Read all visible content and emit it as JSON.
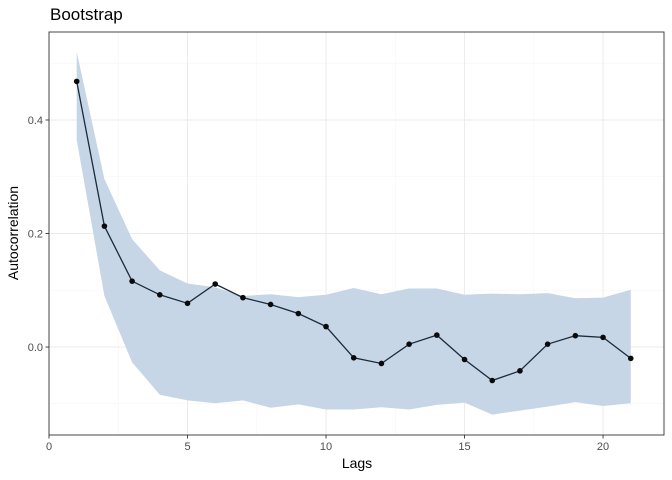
{
  "chart_data": {
    "type": "line",
    "title": "Bootstrap",
    "xlabel": "Lags",
    "ylabel": "Autocorrelation",
    "xlim": [
      0,
      22.2
    ],
    "ylim": [
      -0.155,
      0.555
    ],
    "x_ticks": [
      0,
      5,
      10,
      15,
      20
    ],
    "x_tick_labels": [
      "0",
      "5",
      "10",
      "15",
      "20"
    ],
    "y_ticks": [
      0.0,
      0.2,
      0.4
    ],
    "y_tick_labels": [
      "0.0",
      "0.2",
      "0.4"
    ],
    "grid": true,
    "series": [
      {
        "x": [
          1,
          2,
          3,
          4,
          5,
          6,
          7,
          8,
          9,
          10,
          11,
          12,
          13,
          14,
          15,
          16,
          17,
          18,
          19,
          20,
          21
        ],
        "values": [
          0.468,
          0.213,
          0.116,
          0.092,
          0.077,
          0.111,
          0.087,
          0.075,
          0.059,
          0.036,
          -0.019,
          -0.029,
          0.005,
          0.021,
          -0.022,
          -0.059,
          -0.042,
          0.005,
          0.02,
          0.017,
          -0.02
        ],
        "lower": [
          0.365,
          0.09,
          -0.027,
          -0.084,
          -0.094,
          -0.099,
          -0.094,
          -0.107,
          -0.101,
          -0.11,
          -0.11,
          -0.106,
          -0.11,
          -0.102,
          -0.098,
          -0.119,
          -0.112,
          -0.105,
          -0.097,
          -0.104,
          -0.099
        ],
        "upper": [
          0.52,
          0.296,
          0.19,
          0.135,
          0.112,
          0.105,
          0.09,
          0.093,
          0.088,
          0.092,
          0.104,
          0.093,
          0.103,
          0.103,
          0.092,
          0.094,
          0.093,
          0.095,
          0.086,
          0.087,
          0.101
        ]
      }
    ],
    "colors": {
      "band": "#c6d6e6",
      "line": "#1b2a3a",
      "point": "#0a0a0a",
      "grid_major": "#ebebeb",
      "grid_minor": "#f5f5f5",
      "panel_border": "#333333"
    }
  }
}
